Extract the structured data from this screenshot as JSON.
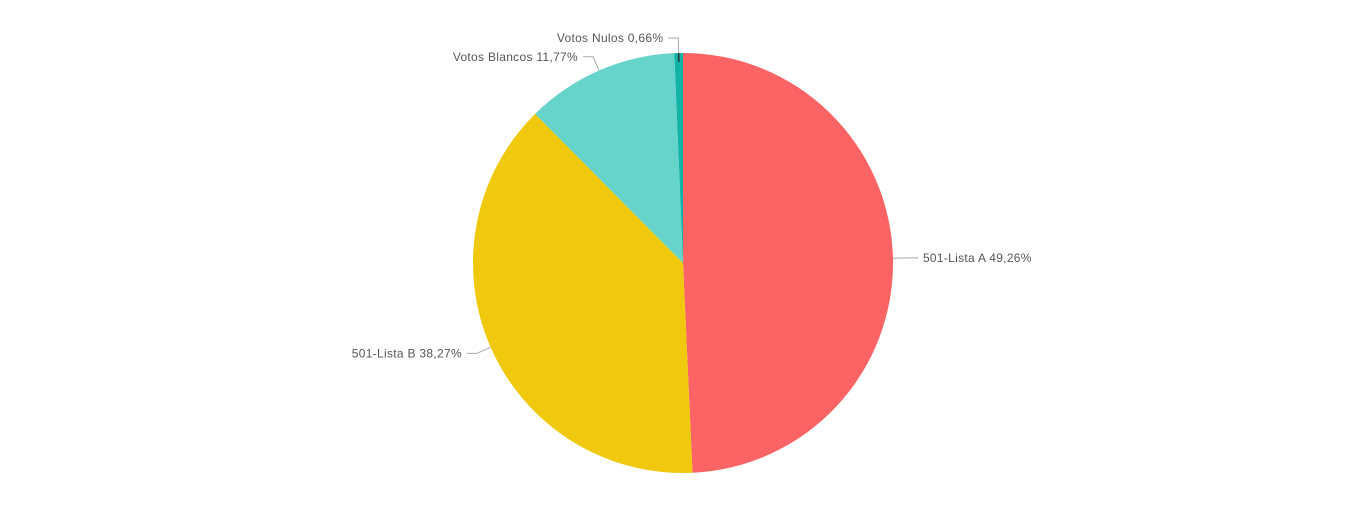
{
  "page": {
    "background_color": "#ffffff"
  },
  "chart_data": {
    "type": "pie",
    "title": "",
    "legend_position": "none",
    "start_angle_deg": 0,
    "direction": "clockwise",
    "decimal_separator": ",",
    "label_color": "#55565a",
    "tick_color": "#a9a9a9",
    "small_slice_inner_tick_color": "#2f2f2f",
    "series": [
      {
        "label": "501-Lista A",
        "value": 49.26,
        "display": "501-Lista A 49,26%",
        "color": "#fb6364"
      },
      {
        "label": "501-Lista B",
        "value": 38.27,
        "display": "501-Lista B 38,27%",
        "color": "#f0c90e"
      },
      {
        "label": "Votos Blancos",
        "value": 11.77,
        "display": "Votos Blancos 11,77%",
        "color": "#66d4ca"
      },
      {
        "label": "Votos Nulos",
        "value": 0.66,
        "display": "Votos Nulos 0,66%",
        "color": "#10b3a6"
      }
    ]
  }
}
